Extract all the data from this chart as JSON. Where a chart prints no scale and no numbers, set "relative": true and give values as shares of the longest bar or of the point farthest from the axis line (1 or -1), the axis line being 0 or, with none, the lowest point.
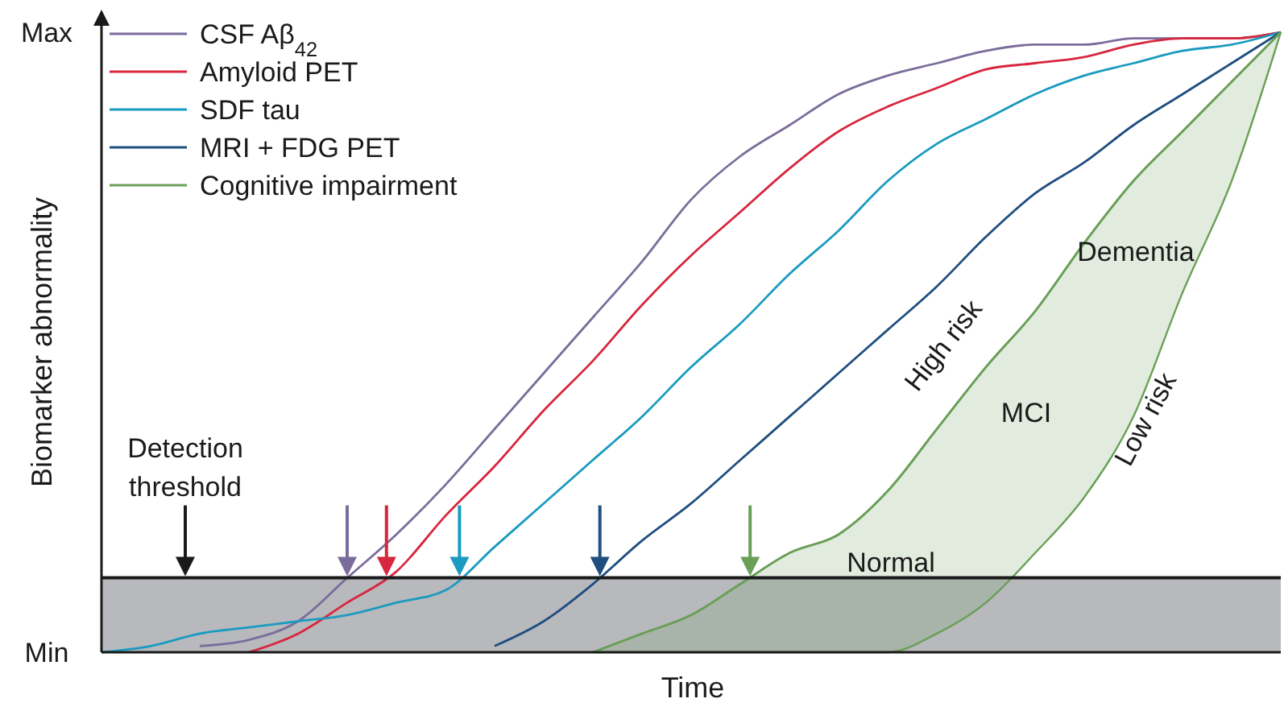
{
  "chart_data": {
    "type": "line",
    "xlabel": "Time",
    "ylabel": "Biomarker abnormality",
    "categories": [
      null,
      null,
      null,
      null,
      null,
      null,
      null,
      null,
      null,
      null,
      null,
      null,
      null,
      null,
      null,
      null,
      null,
      null,
      null,
      null,
      null,
      null,
      null,
      null,
      null
    ],
    "relative": true,
    "legend": "top left",
    "series": [
      {
        "name": "CSF Aβ$_{42}$",
        "color": "#7b6d9b",
        "values": [
          null,
          null,
          0.01,
          0.02,
          0.05,
          0.12,
          0.19,
          0.27,
          0.36,
          0.45,
          0.54,
          0.63,
          0.73,
          0.8,
          0.85,
          0.9,
          0.93,
          0.95,
          0.97,
          0.98,
          0.98,
          0.99,
          0.99,
          0.99,
          1
        ]
      },
      {
        "name": "Amyloid PET",
        "color": "#d7263d",
        "values": [
          null,
          null,
          null,
          0,
          0.03,
          0.08,
          0.13,
          0.22,
          0.3,
          0.39,
          0.47,
          0.56,
          0.64,
          0.71,
          0.78,
          0.84,
          0.88,
          0.91,
          0.94,
          0.95,
          0.96,
          0.98,
          0.99,
          0.99,
          1
        ]
      },
      {
        "name": "SDF tau",
        "color": "#1a9bbf",
        "values": [
          0,
          0.01,
          0.03,
          0.04,
          0.05,
          0.06,
          0.08,
          0.1,
          0.17,
          0.24,
          0.31,
          0.38,
          0.46,
          0.53,
          0.61,
          0.68,
          0.76,
          0.82,
          0.86,
          0.9,
          0.93,
          0.95,
          0.97,
          0.98,
          1
        ]
      },
      {
        "name": "MRI + FDG PET",
        "color": "#1f4e7f",
        "values": [
          null,
          null,
          null,
          null,
          null,
          null,
          null,
          null,
          0.01,
          0.05,
          0.11,
          0.18,
          0.24,
          0.31,
          0.38,
          0.45,
          0.52,
          0.59,
          0.67,
          0.74,
          0.79,
          0.85,
          0.9,
          0.95,
          1
        ]
      },
      {
        "name": "Cognitive impairment",
        "color": "#6a9f58",
        "values": [
          null,
          null,
          null,
          null,
          null,
          null,
          null,
          null,
          null,
          null,
          0,
          0.03,
          0.06,
          0.11,
          0.16,
          0.19,
          0.26,
          0.36,
          0.46,
          0.55,
          0.66,
          0.76,
          0.84,
          0.92,
          1
        ],
        "upper": [
          null,
          null,
          null,
          null,
          null,
          null,
          null,
          null,
          null,
          null,
          0,
          0.03,
          0.06,
          0.11,
          0.16,
          0.19,
          0.26,
          0.36,
          0.46,
          0.55,
          0.66,
          0.76,
          0.84,
          0.92,
          1
        ],
        "lower": [
          null,
          null,
          null,
          null,
          null,
          null,
          null,
          null,
          null,
          null,
          0,
          0,
          0,
          0,
          0,
          0,
          0,
          0.03,
          0.08,
          0.16,
          0.25,
          0.38,
          0.58,
          0.76,
          1
        ]
      }
    ],
    "bands": [
      {
        "axis": "y",
        "from": 0,
        "to": 0.12,
        "color": "#b8b9bd"
      }
    ],
    "ref_lines": [
      {
        "axis": "y",
        "value": 0.12,
        "color": "#1a1a1a"
      }
    ],
    "annotations": [
      "Normal",
      "MCI",
      "Dementia",
      "High risk",
      "Low risk",
      "Max",
      "Min",
      "Detection threshold"
    ]
  }
}
